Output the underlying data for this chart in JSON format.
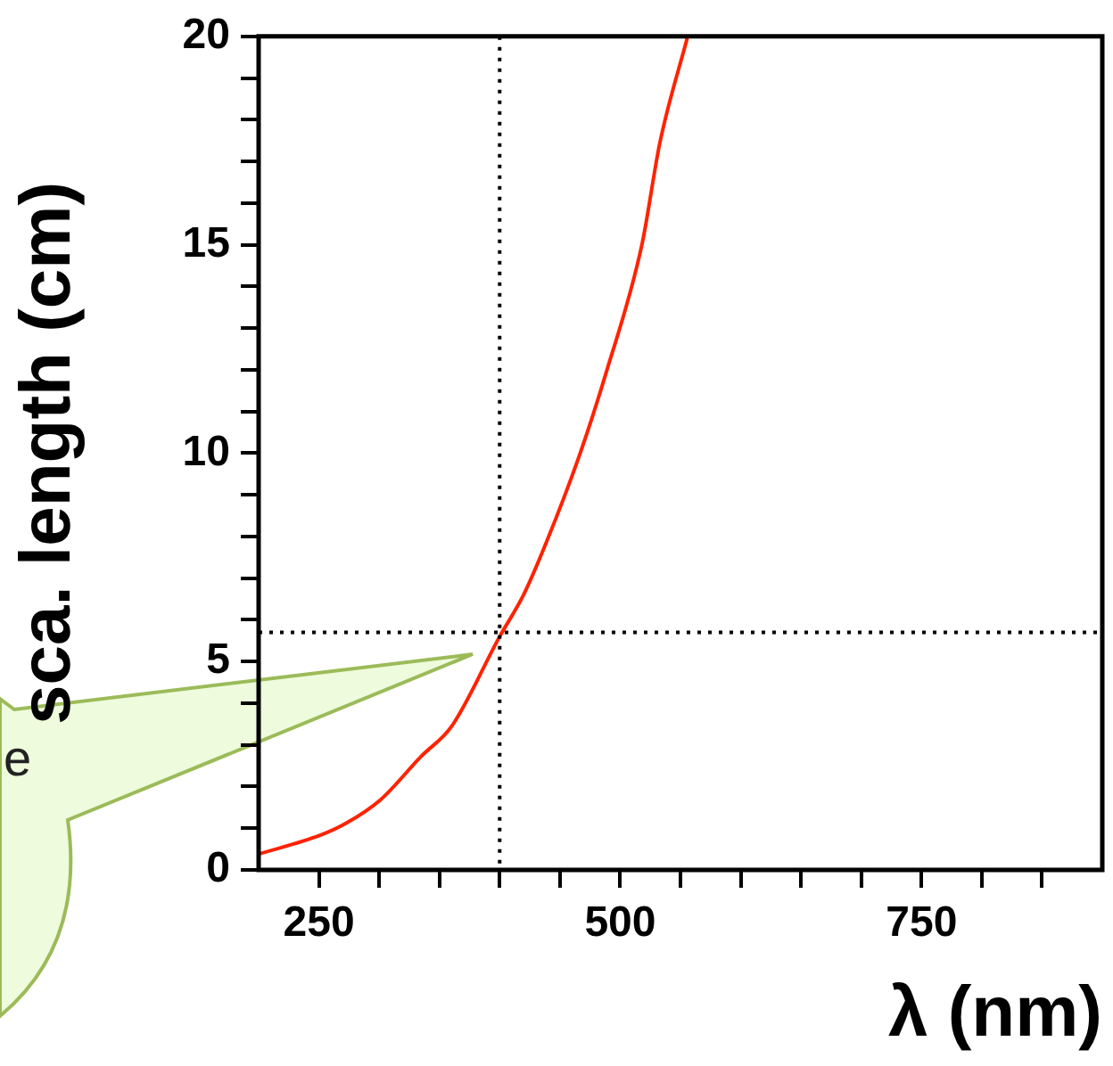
{
  "chart_data": {
    "type": "line",
    "xlabel": "λ (nm)",
    "ylabel": "sca. length (cm)",
    "x": [
      200,
      251,
      272,
      301,
      335,
      360,
      400,
      420,
      439,
      465,
      488,
      518,
      533,
      556
    ],
    "series": [
      {
        "color": "#ff2200",
        "values": [
          0.38,
          0.83,
          1.11,
          1.68,
          2.73,
          3.44,
          5.6,
          6.61,
          7.88,
          9.85,
          11.9,
          15.0,
          17.46,
          20.0
        ]
      }
    ],
    "xlim": [
      200,
      900
    ],
    "ylim": [
      0,
      20
    ],
    "xticks": [
      250,
      {
        "value": 300,
        "label": null
      },
      {
        "value": 350,
        "label": null
      },
      {
        "value": 400,
        "label": null
      },
      {
        "value": 450,
        "label": null
      },
      500,
      {
        "value": 550,
        "label": null
      },
      {
        "value": 600,
        "label": null
      },
      {
        "value": 650,
        "label": null
      },
      {
        "value": 700,
        "label": null
      },
      750,
      {
        "value": 800,
        "label": null
      },
      {
        "value": 850,
        "label": null
      }
    ],
    "yticks": [
      0,
      {
        "value": 1,
        "label": null
      },
      {
        "value": 2,
        "label": null
      },
      {
        "value": 3,
        "label": null
      },
      {
        "value": 4,
        "label": null
      },
      5,
      {
        "value": 6,
        "label": null
      },
      {
        "value": 7,
        "label": null
      },
      {
        "value": 8,
        "label": null
      },
      {
        "value": 9,
        "label": null
      },
      10,
      {
        "value": 11,
        "label": null
      },
      {
        "value": 12,
        "label": null
      },
      {
        "value": 13,
        "label": null
      },
      {
        "value": 14,
        "label": null
      },
      15,
      {
        "value": 16,
        "label": null
      },
      {
        "value": 17,
        "label": null
      },
      {
        "value": 18,
        "label": null
      },
      {
        "value": 19,
        "label": null
      },
      20
    ],
    "ref_lines": [
      {
        "axis": "x",
        "value": 400,
        "color": "#000000",
        "line_style": "dotted"
      },
      {
        "axis": "y",
        "value": 5.7,
        "color": "#000000",
        "line_style": "dotted"
      }
    ],
    "annotations": [
      "e"
    ],
    "grid": false,
    "legend": false,
    "marker": "none",
    "line_style": "solid"
  }
}
